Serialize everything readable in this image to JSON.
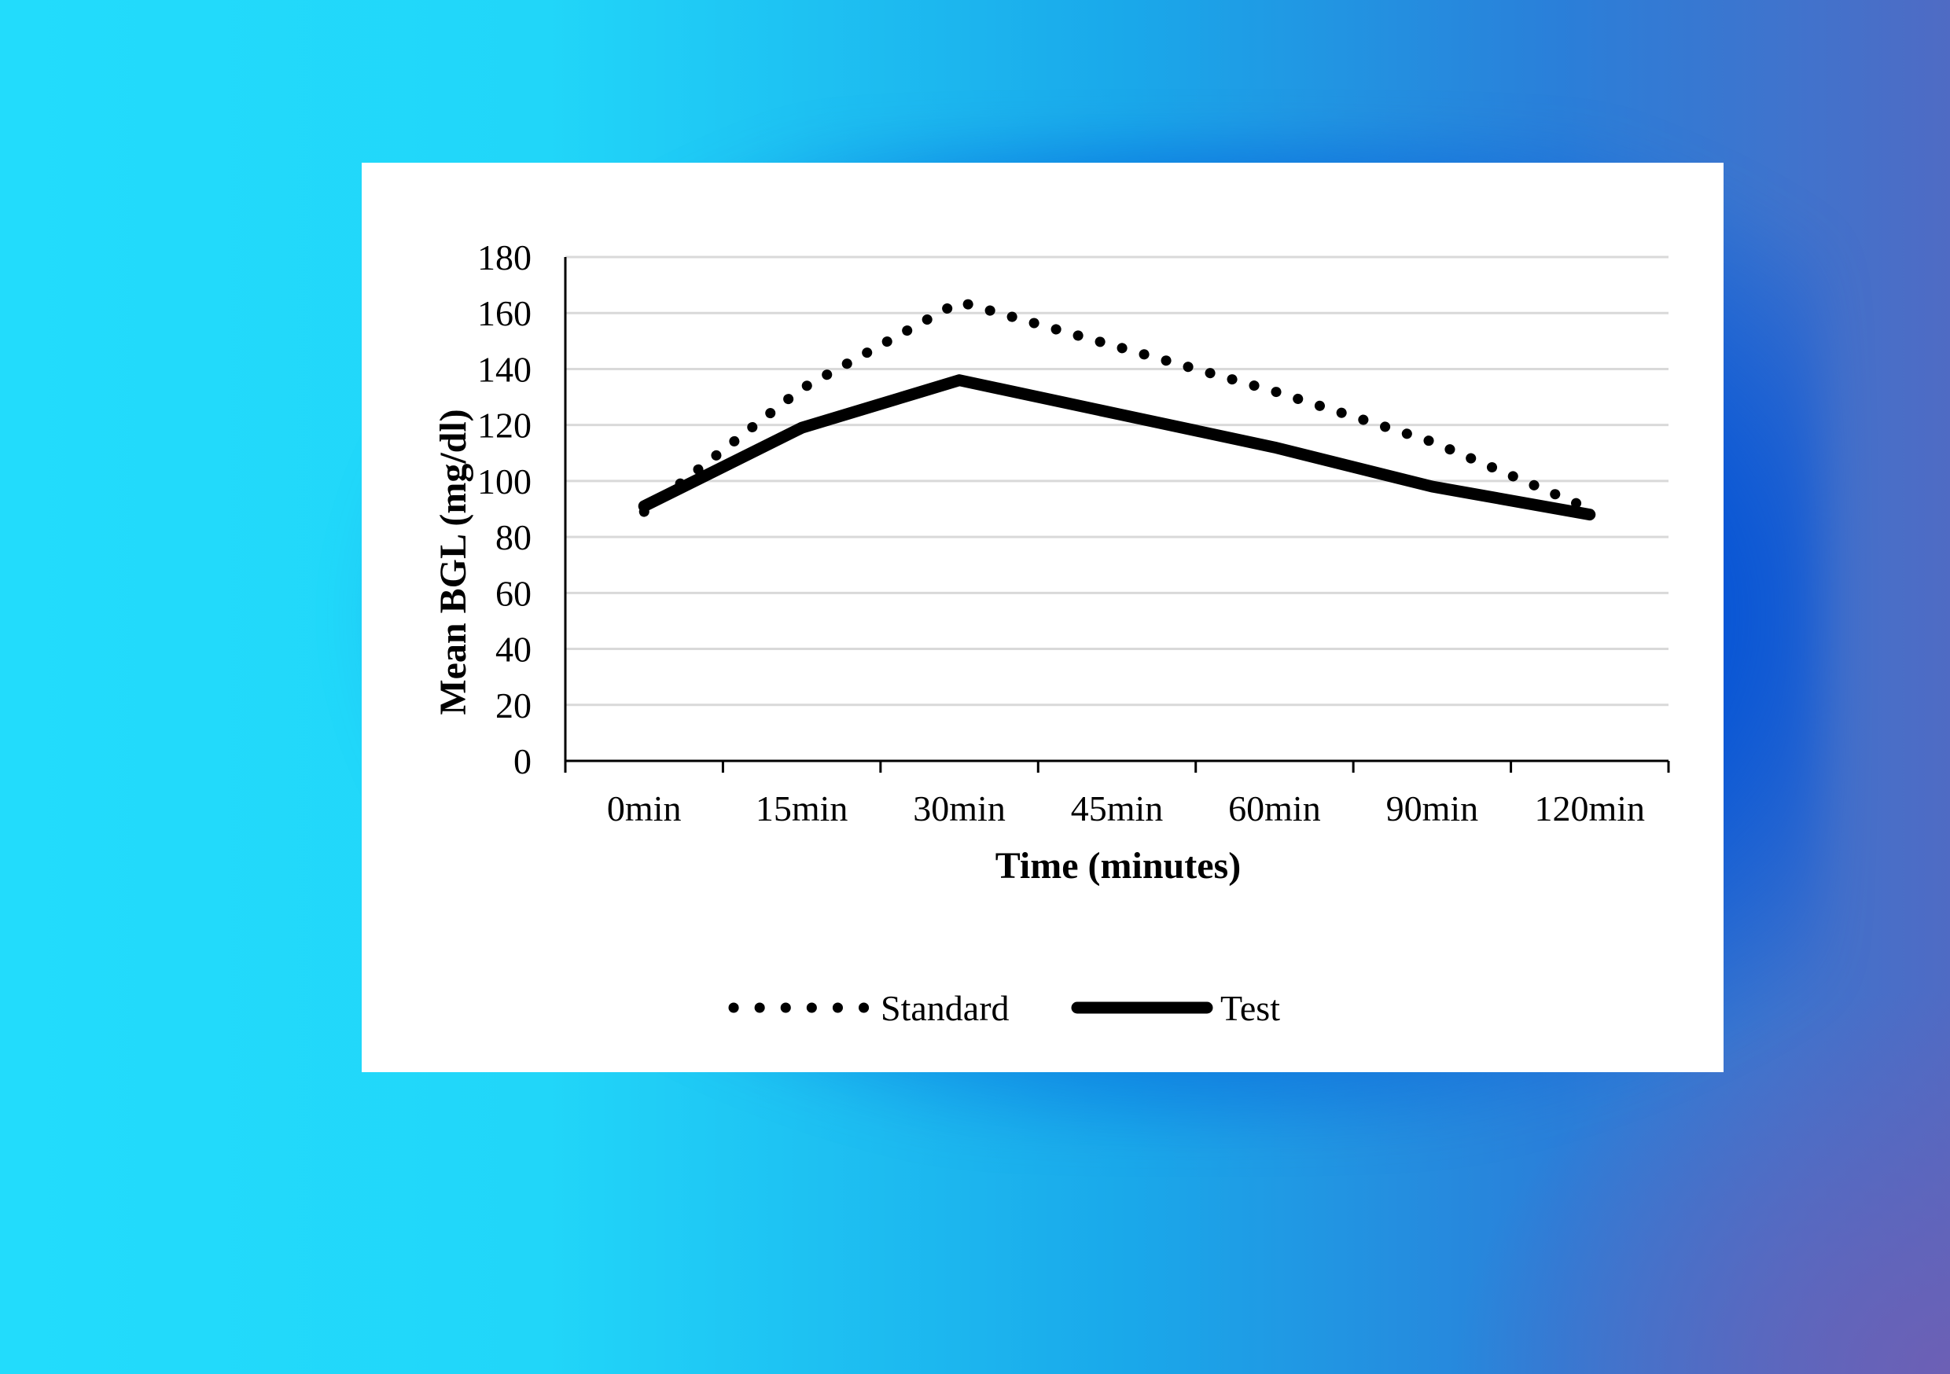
{
  "chart_data": {
    "type": "line",
    "title": "",
    "xlabel": "Time (minutes)",
    "ylabel": "Mean BGL (mg/dl)",
    "categories": [
      "0min",
      "15min",
      "30min",
      "45min",
      "60min",
      "90min",
      "120min"
    ],
    "ylim": [
      0,
      180
    ],
    "yticks": [
      0,
      20,
      40,
      60,
      80,
      100,
      120,
      140,
      160,
      180
    ],
    "grid": true,
    "legend_position": "bottom",
    "series": [
      {
        "name": "Standard",
        "style": "dotted",
        "color": "#000000",
        "values": [
          89,
          133,
          164,
          148,
          132,
          114,
          90
        ]
      },
      {
        "name": "Test",
        "style": "solid",
        "color": "#000000",
        "values": [
          91,
          119,
          136,
          124,
          112,
          98,
          88
        ]
      }
    ]
  }
}
